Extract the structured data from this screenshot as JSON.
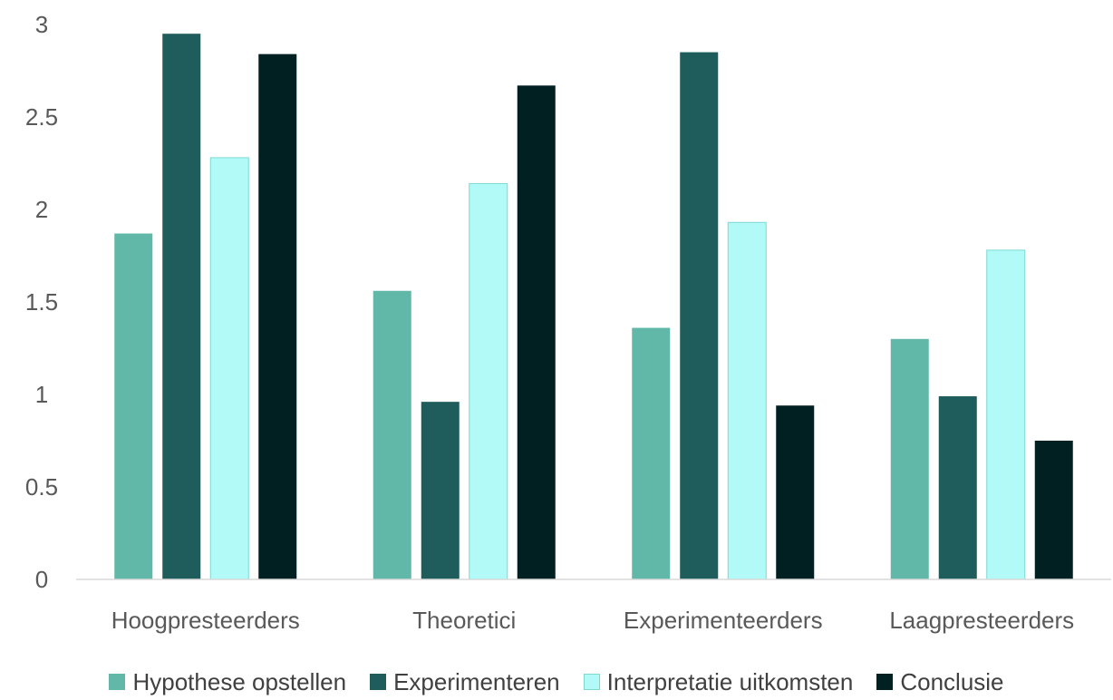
{
  "chart_data": {
    "type": "bar",
    "categories": [
      "Hoogpresteerders",
      "Theoretici",
      "Experimenteerders",
      "Laagpresteerders"
    ],
    "series": [
      {
        "name": "Hypothese opstellen",
        "color": "#62B8A8",
        "values": [
          1.87,
          1.56,
          1.36,
          1.3
        ]
      },
      {
        "name": "Experimenteren",
        "color": "#1F5C5C",
        "values": [
          2.95,
          0.96,
          2.85,
          0.99
        ]
      },
      {
        "name": "Interpretatie uitkomsten",
        "color": "#B1FAF7",
        "values": [
          2.28,
          2.14,
          1.93,
          1.78
        ]
      },
      {
        "name": "Conclusie",
        "color": "#012022",
        "values": [
          2.84,
          2.67,
          0.94,
          0.75
        ]
      }
    ],
    "yticks": [
      "0",
      "0.5",
      "1",
      "1.5",
      "2",
      "2.5",
      "3"
    ],
    "ylim": [
      0,
      3
    ],
    "legend_position": "bottom",
    "grid": false
  }
}
